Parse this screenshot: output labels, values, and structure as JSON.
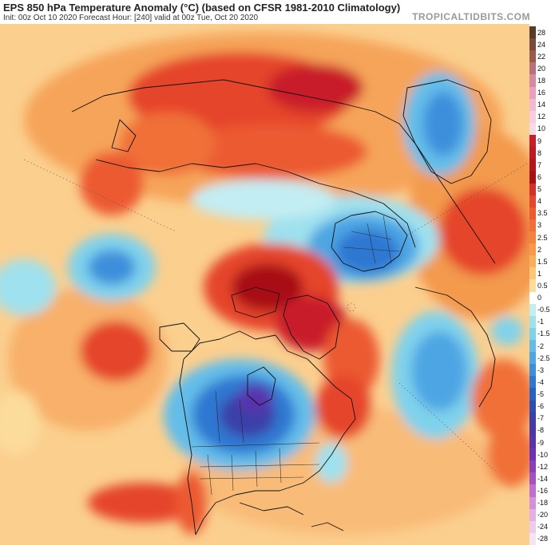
{
  "header": {
    "title": "EPS 850 hPa Temperature Anomaly (°C) (based on CFSR 1981-2010 Climatology)",
    "subtitle": "Init: 00z Oct 10 2020   Forecast Hour: [240]   valid at 00z Tue, Oct 20 2020",
    "brand": "TROPICALTIDBITS.COM"
  },
  "map": {
    "projection": "north polar stereographic",
    "variable": "850 hPa temperature anomaly",
    "features": [
      "coastlines",
      "country borders",
      "US state borders",
      "Canadian province borders",
      "latitude/longitude dotted grid"
    ]
  },
  "legend": {
    "levels": [
      {
        "label": "28",
        "color": "#5c3a2a"
      },
      {
        "label": "24",
        "color": "#7a4a3a"
      },
      {
        "label": "22",
        "color": "#9c5a4a"
      },
      {
        "label": "20",
        "color": "#b8707f"
      },
      {
        "label": "18",
        "color": "#d58aa4"
      },
      {
        "label": "16",
        "color": "#ea9fbf"
      },
      {
        "label": "14",
        "color": "#f3b8d2"
      },
      {
        "label": "12",
        "color": "#f8cde2"
      },
      {
        "label": "10",
        "color": "#f4dbe8"
      },
      {
        "label": "9",
        "color": "#c91e2a"
      },
      {
        "label": "8",
        "color": "#bf1a24"
      },
      {
        "label": "7",
        "color": "#b4161e"
      },
      {
        "label": "6",
        "color": "#a81018"
      },
      {
        "label": "5",
        "color": "#d42f2a"
      },
      {
        "label": "4",
        "color": "#e5452c"
      },
      {
        "label": "3.5",
        "color": "#ec5a30"
      },
      {
        "label": "3",
        "color": "#f06f38"
      },
      {
        "label": "2.5",
        "color": "#f3833e"
      },
      {
        "label": "2",
        "color": "#f6994a"
      },
      {
        "label": "1.5",
        "color": "#f8af5c"
      },
      {
        "label": "1",
        "color": "#fac677"
      },
      {
        "label": "0.5",
        "color": "#fcdc9b"
      },
      {
        "label": "0",
        "color": "#ffffff"
      },
      {
        "label": "-0.5",
        "color": "#c2edf3"
      },
      {
        "label": "-1",
        "color": "#9fe1ee"
      },
      {
        "label": "-1.5",
        "color": "#7fd2ec"
      },
      {
        "label": "-2",
        "color": "#64bde9"
      },
      {
        "label": "-2.5",
        "color": "#4ea6e3"
      },
      {
        "label": "-3",
        "color": "#3c8fdb"
      },
      {
        "label": "-4",
        "color": "#2f78d2"
      },
      {
        "label": "-5",
        "color": "#2761c2"
      },
      {
        "label": "-6",
        "color": "#2a4fb0"
      },
      {
        "label": "-7",
        "color": "#3a40a8"
      },
      {
        "label": "-8",
        "color": "#4b37a8"
      },
      {
        "label": "-9",
        "color": "#5a33ad"
      },
      {
        "label": "-10",
        "color": "#6e33b4"
      },
      {
        "label": "-12",
        "color": "#8a3fbd"
      },
      {
        "label": "-14",
        "color": "#a451c6"
      },
      {
        "label": "-16",
        "color": "#c06fd0"
      },
      {
        "label": "-18",
        "color": "#d390dc"
      },
      {
        "label": "-20",
        "color": "#e2b0e6"
      },
      {
        "label": "-24",
        "color": "#eccbee"
      },
      {
        "label": "-28",
        "color": "#f5e4f6"
      }
    ]
  }
}
